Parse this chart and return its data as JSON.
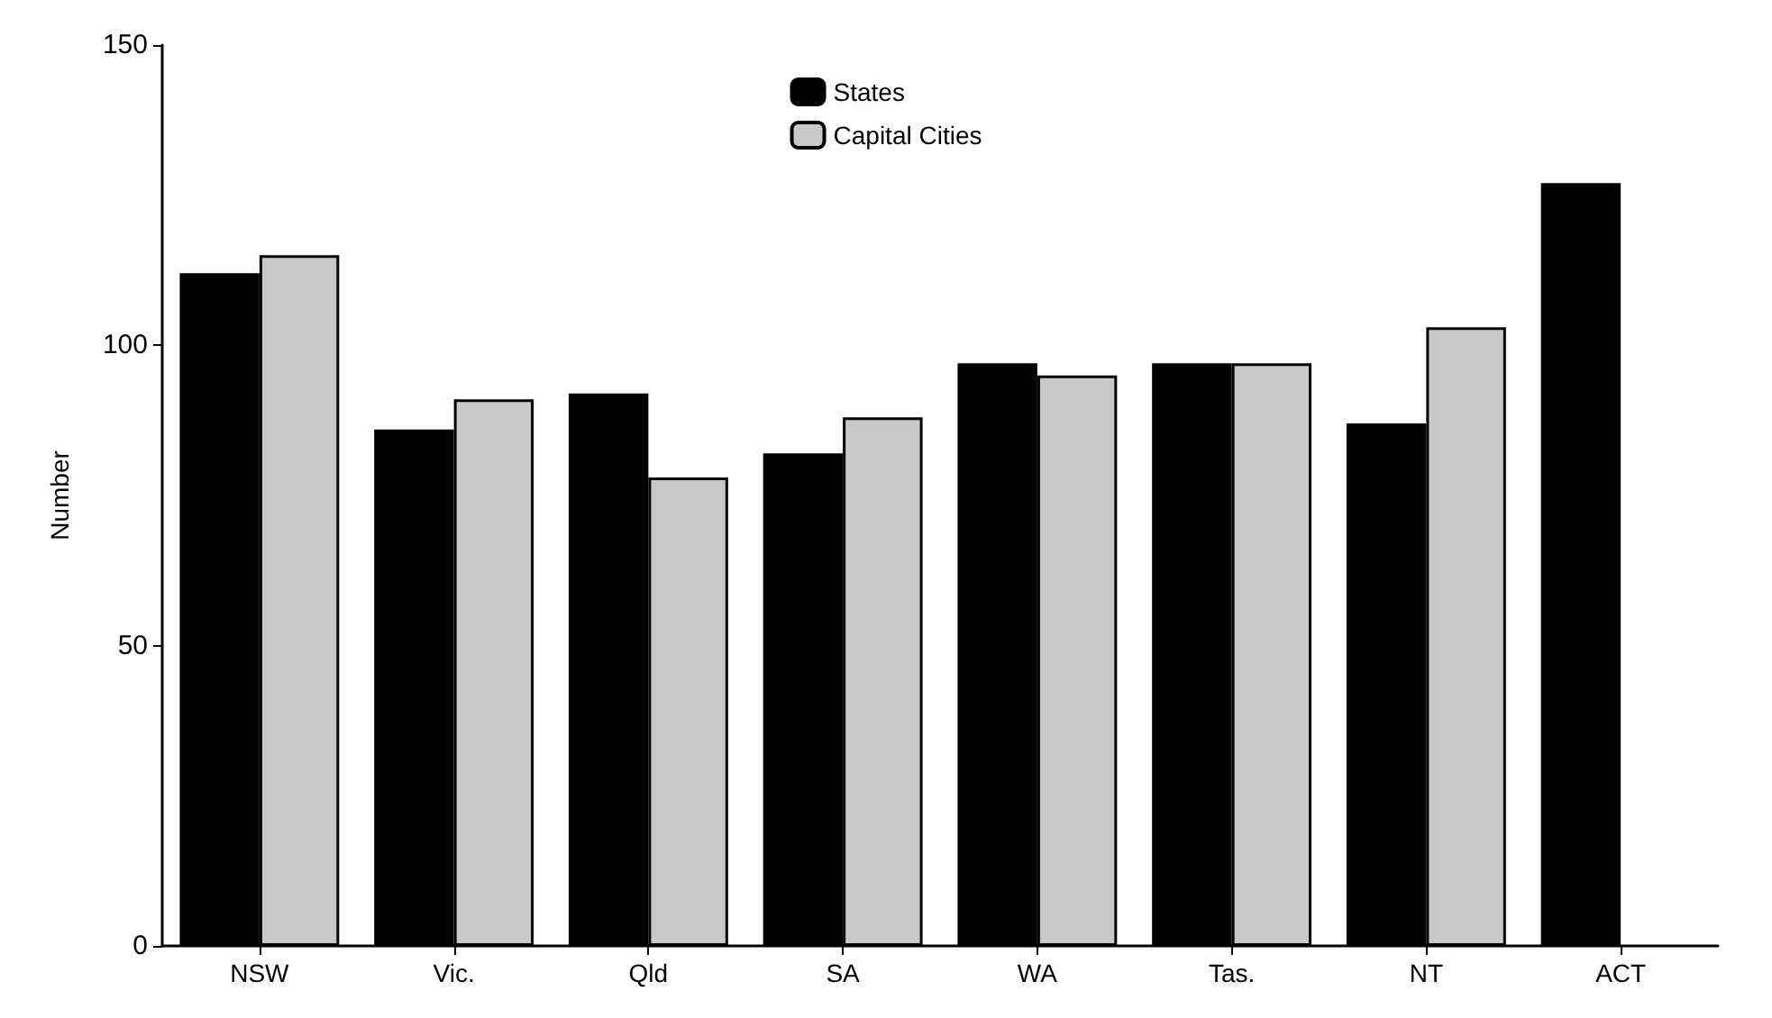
{
  "chart_data": {
    "type": "bar",
    "ylabel": "Number",
    "categories": [
      "NSW",
      "Vic.",
      "Qld",
      "SA",
      "WA",
      "Tas.",
      "NT",
      "ACT"
    ],
    "series": [
      {
        "name": "States",
        "color": "#000000",
        "values": [
          112,
          86,
          92,
          82,
          97,
          97,
          87,
          127
        ]
      },
      {
        "name": "Capital Cities",
        "color": "#c8c8c8",
        "values": [
          115,
          91,
          78,
          88,
          95,
          97,
          103,
          null
        ]
      }
    ],
    "ylim": [
      0,
      150
    ],
    "yticks": [
      0,
      50,
      100,
      150
    ],
    "grid": false,
    "legend": "top"
  }
}
